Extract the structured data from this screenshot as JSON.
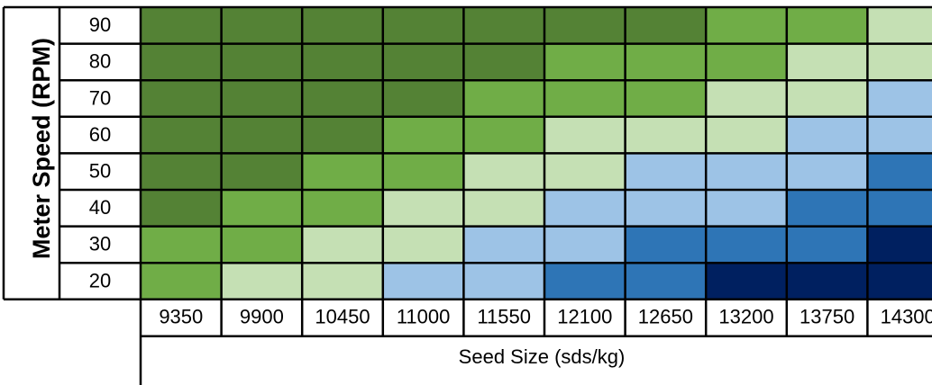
{
  "chart_data": {
    "type": "heatmap",
    "ylabel": "Meter Speed (RPM)",
    "xlabel": "Seed Size (sds/kg)",
    "x": [
      "9350",
      "9900",
      "10450",
      "11000",
      "11550",
      "12100",
      "12650",
      "13200",
      "13750",
      "14300"
    ],
    "y": [
      "90",
      "80",
      "70",
      "60",
      "50",
      "40",
      "30",
      "20"
    ],
    "colors": {
      "c5": "#548235",
      "c4": "#70AD47",
      "c3": "#C5E0B4",
      "c2": "#9DC3E6",
      "c1": "#2E75B6",
      "c0": "#002060"
    },
    "levels": [
      [
        5,
        5,
        5,
        5,
        5,
        5,
        5,
        4,
        4,
        3
      ],
      [
        5,
        5,
        5,
        5,
        5,
        4,
        4,
        4,
        3,
        3
      ],
      [
        5,
        5,
        5,
        5,
        4,
        4,
        4,
        3,
        3,
        2
      ],
      [
        5,
        5,
        5,
        4,
        4,
        3,
        3,
        3,
        2,
        2
      ],
      [
        5,
        5,
        4,
        4,
        3,
        3,
        2,
        2,
        2,
        1
      ],
      [
        5,
        4,
        4,
        3,
        3,
        2,
        2,
        2,
        1,
        1
      ],
      [
        4,
        4,
        3,
        3,
        2,
        2,
        1,
        1,
        1,
        0
      ],
      [
        4,
        3,
        3,
        2,
        2,
        1,
        1,
        0,
        0,
        0
      ]
    ]
  }
}
